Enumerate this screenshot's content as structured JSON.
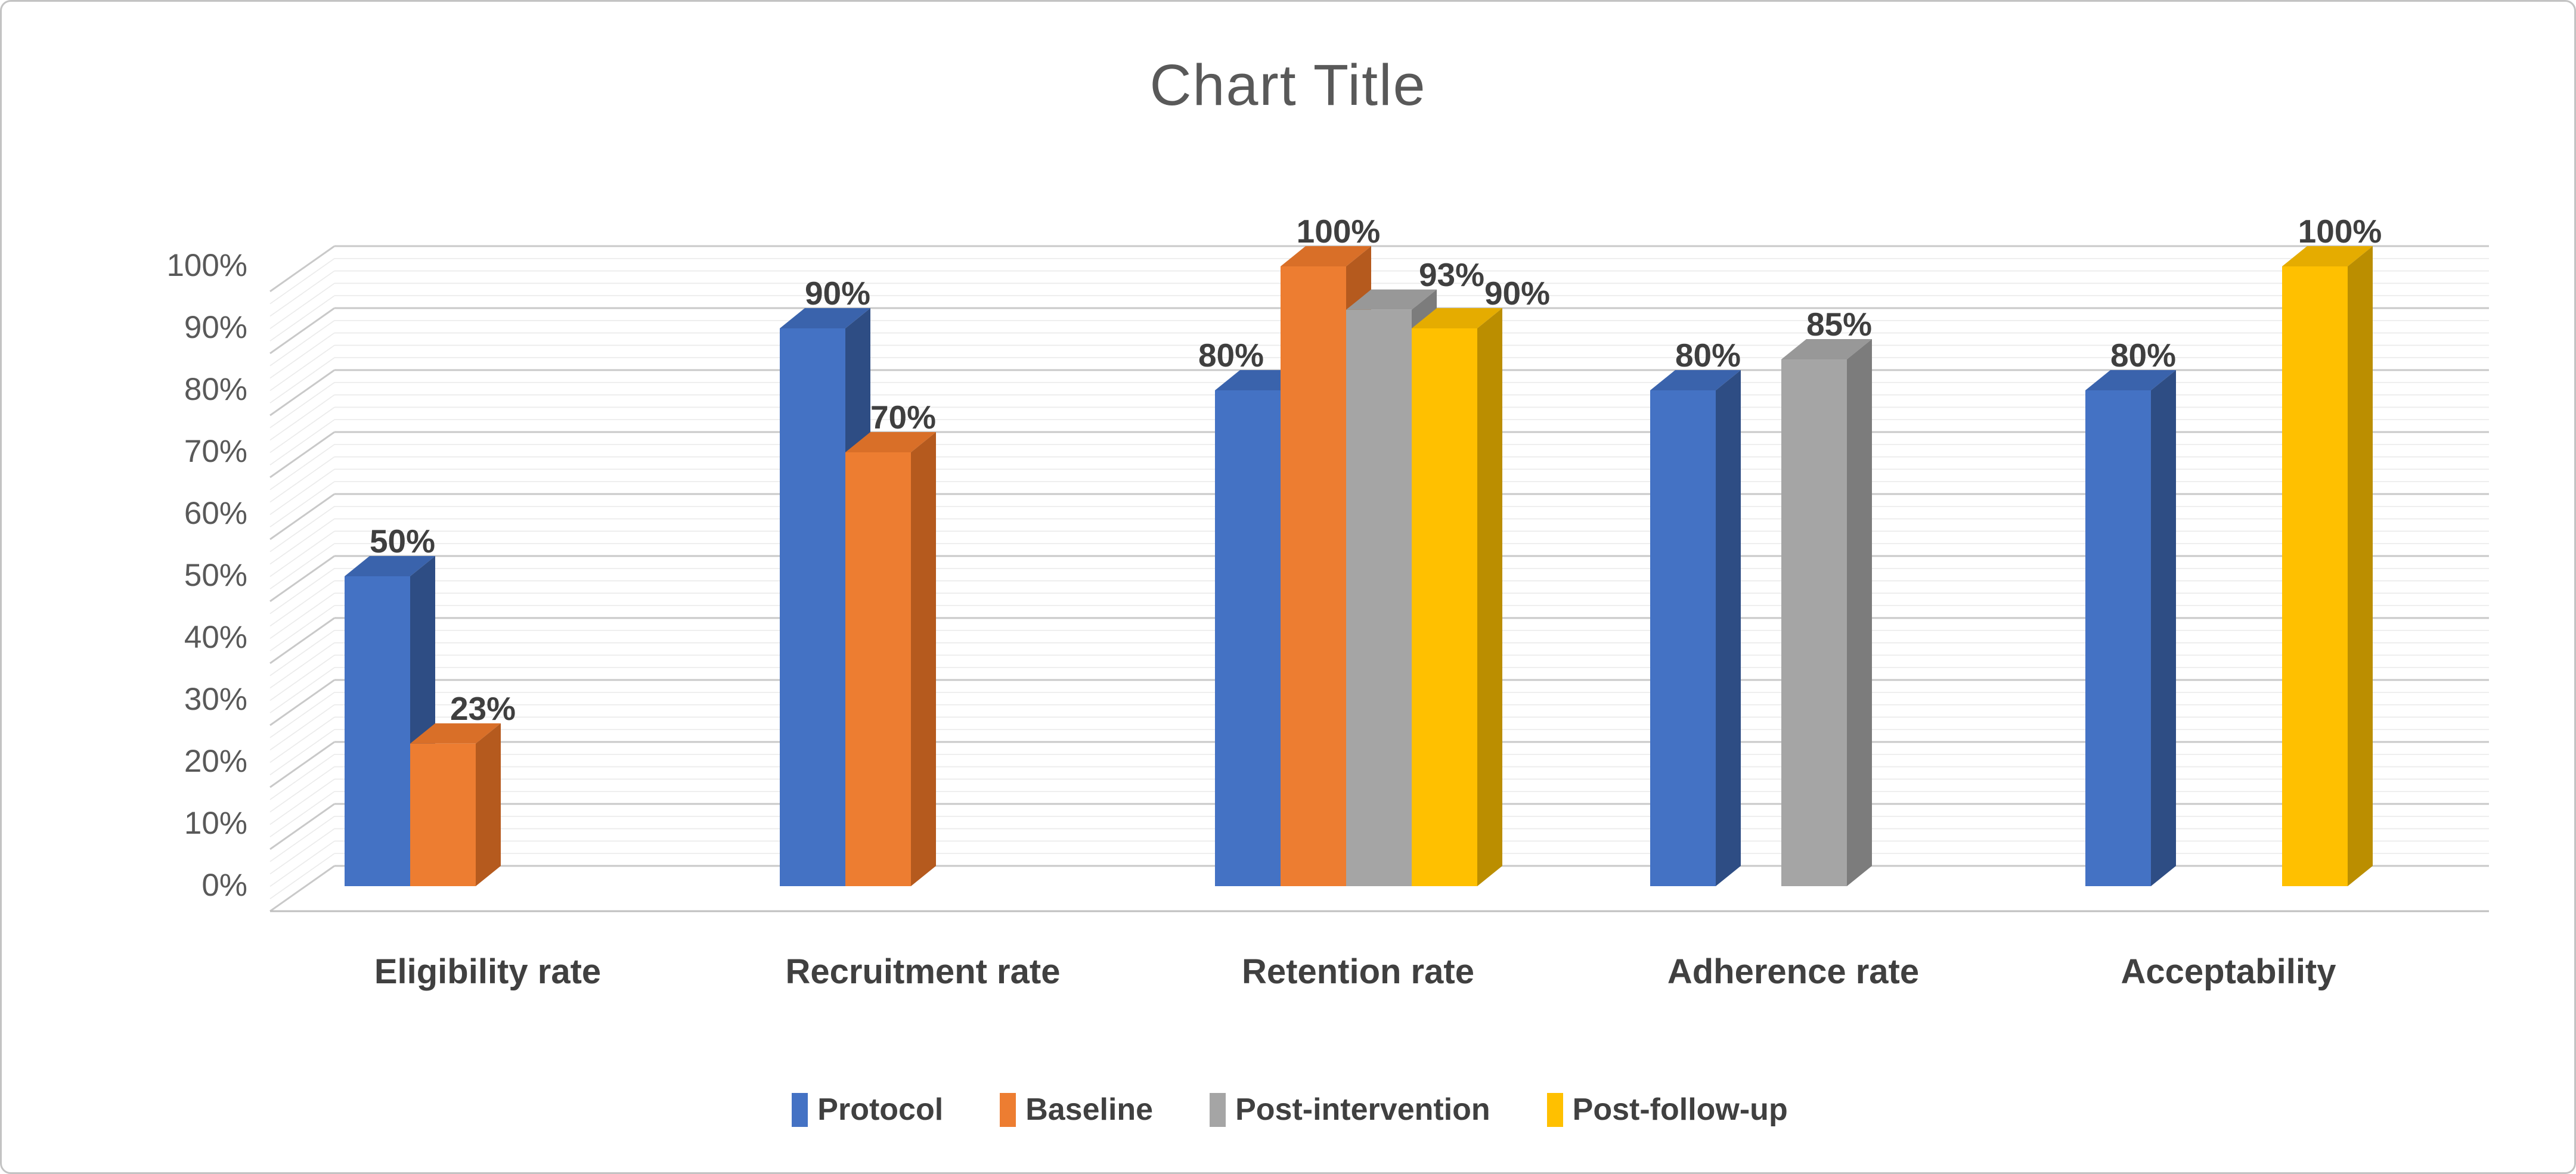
{
  "title": "Chart Title",
  "chart_data": {
    "type": "bar",
    "subtype": "3d-clustered-column",
    "title": "Chart Title",
    "categories": [
      "Eligibility rate",
      "Recruitment rate",
      "Retention rate",
      "Adherence rate",
      "Acceptability"
    ],
    "series": [
      {
        "name": "Protocol",
        "color": "#4472C4",
        "top_color": "#3A63AC",
        "side_color": "#2E4D84",
        "values": [
          50,
          90,
          80,
          80,
          80
        ],
        "labels": [
          "50%",
          "90%",
          "80%",
          "80%",
          "80%"
        ]
      },
      {
        "name": "Baseline",
        "color": "#ED7D31",
        "top_color": "#D96F28",
        "side_color": "#B55A1E",
        "values": [
          23,
          70,
          100,
          null,
          null
        ],
        "labels": [
          "23%",
          "70%",
          "100%",
          null,
          null
        ]
      },
      {
        "name": "Post-intervention",
        "color": "#A5A5A5",
        "top_color": "#989898",
        "side_color": "#7C7C7C",
        "values": [
          null,
          null,
          93,
          85,
          null
        ],
        "labels": [
          null,
          null,
          "93%",
          "85%",
          null
        ]
      },
      {
        "name": "Post-follow-up",
        "color": "#FFC000",
        "top_color": "#E5AC00",
        "side_color": "#BB8E00",
        "values": [
          null,
          null,
          90,
          null,
          100
        ],
        "labels": [
          null,
          null,
          "90%",
          null,
          "100%"
        ]
      }
    ],
    "y_axis": {
      "min": 0,
      "max": 100,
      "major_step": 10,
      "minor_step": 2,
      "tick_labels": [
        "0%",
        "10%",
        "20%",
        "30%",
        "40%",
        "50%",
        "60%",
        "70%",
        "80%",
        "90%",
        "100%"
      ]
    },
    "grid": true,
    "legend_position": "bottom",
    "colors": {
      "title_text": "#595959",
      "axis_text": "#595959",
      "label_text": "#3f3f3f",
      "major_gridline": "#c9c9c9",
      "minor_gridline": "#ebebeb",
      "axis_line": "#bfbfbf",
      "frame_border": "#c3c3c3"
    }
  }
}
